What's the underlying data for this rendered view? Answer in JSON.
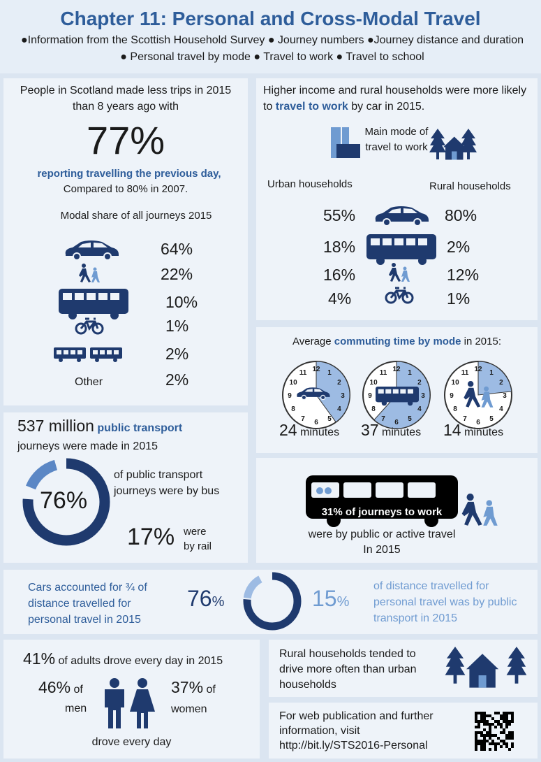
{
  "header": {
    "title": "Chapter 11: Personal and Cross-Modal Travel",
    "subtitle": "●Information from the Scottish Household Survey ●  Journey numbers ●Journey distance and duration ● Personal travel  by mode ● Travel to work ● Travel to school"
  },
  "trips": {
    "intro": "People in Scotland made less trips in 2015 than 8 years ago with",
    "big": "77%",
    "highlight": "reporting travelling the previous day,",
    "compare": "Compared to 80% in 2007.",
    "modal_title": "Modal share of all journeys 2015",
    "modal_values": [
      "64%",
      "22%",
      "10%",
      "1%",
      "2%",
      "2%"
    ],
    "other_label": "Other"
  },
  "income": {
    "intro_before": "Higher income and rural households were more likely to ",
    "highlight": "travel to work",
    "intro_after": " by car in 2015.",
    "legend": "Main mode of travel to work",
    "urban_label": "Urban households",
    "rural_label": "Rural households",
    "urban": [
      "55%",
      "18%",
      "16%",
      "4%"
    ],
    "rural": [
      "80%",
      "2%",
      "12%",
      "1%"
    ]
  },
  "commute": {
    "before": "Average ",
    "highlight": "commuting time by mode",
    "after": " in 2015:",
    "clock_numerals": [
      "12",
      "1",
      "2",
      "3",
      "4",
      "5",
      "6",
      "7",
      "8",
      "9",
      "10",
      "11"
    ],
    "clocks": [
      {
        "minutes": 24,
        "unit": "minutes"
      },
      {
        "minutes": 37,
        "unit": "minutes"
      },
      {
        "minutes": 14,
        "unit": "minutes"
      }
    ]
  },
  "public": {
    "count": "537 million",
    "highlight": "public transport",
    "line2": "journeys were made in 2015",
    "bus_value": "76%",
    "bus_text": "of public transport journeys were by bus",
    "rail_value": "17%",
    "rail_text": "were by rail"
  },
  "work": {
    "banner": "31% of journeys to work",
    "line1": "were by public or active travel",
    "line2": "In 2015"
  },
  "distance": {
    "left_text": "Cars accounted for ¾ of distance travelled for personal travel in 2015",
    "car_value": "76",
    "car_unit": "%",
    "public_value": "15",
    "public_unit": "%",
    "right_text": "of distance travelled for personal travel was by public transport in 2015"
  },
  "adults": {
    "value": "41%",
    "text": " of adults drove every day in 2015",
    "men_value": "46%",
    "men_of": "of",
    "men_label": "men",
    "women_value": "37%",
    "women_of": "of",
    "women_label": "women",
    "footer": "drove every day"
  },
  "rural": {
    "text": "Rural households tended to drive more often than urban households"
  },
  "web": {
    "text": "For web publication and further information, visit",
    "url": "http://bit.ly/STS2016-Personal"
  }
}
